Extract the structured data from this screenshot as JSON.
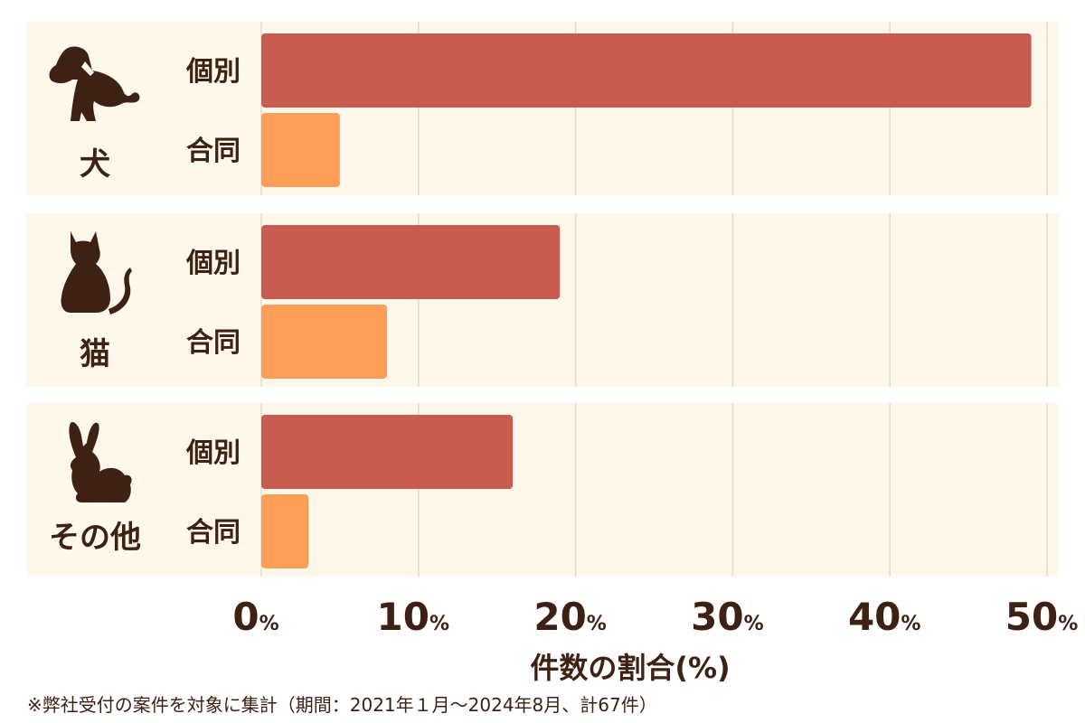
{
  "chart_data": {
    "type": "bar",
    "orientation": "horizontal",
    "groups": [
      {
        "label": "犬",
        "icon": "dog-icon",
        "bars": [
          {
            "label": "個別",
            "value": 49,
            "color": "#c75c4f"
          },
          {
            "label": "合同",
            "value": 5,
            "color": "#ff9f57"
          }
        ]
      },
      {
        "label": "猫",
        "icon": "cat-icon",
        "bars": [
          {
            "label": "個別",
            "value": 19,
            "color": "#c75c4f"
          },
          {
            "label": "合同",
            "value": 8,
            "color": "#ff9f57"
          }
        ]
      },
      {
        "label": "その他",
        "icon": "rabbit-icon",
        "bars": [
          {
            "label": "個別",
            "value": 16,
            "color": "#c75c4f"
          },
          {
            "label": "合同",
            "value": 3,
            "color": "#ff9f57"
          }
        ]
      }
    ],
    "xlim": [
      0,
      50
    ],
    "xticks": [
      {
        "value": 0,
        "number": "0",
        "unit": "%"
      },
      {
        "value": 10,
        "number": "10",
        "unit": "%"
      },
      {
        "value": 20,
        "number": "20",
        "unit": "%"
      },
      {
        "value": 30,
        "number": "30",
        "unit": "%"
      },
      {
        "value": 40,
        "number": "40",
        "unit": "%"
      },
      {
        "value": 50,
        "number": "50",
        "unit": "%"
      }
    ],
    "xlabel": "件数の割合(%)",
    "grid": true,
    "colors": {
      "panel": "#fdf8eb",
      "grid": "#e2dccc",
      "text": "#3d2115"
    }
  },
  "footnote": "※弊社受付の案件を対象に集計（期間：2021年１月〜2024年8月、計67件）"
}
